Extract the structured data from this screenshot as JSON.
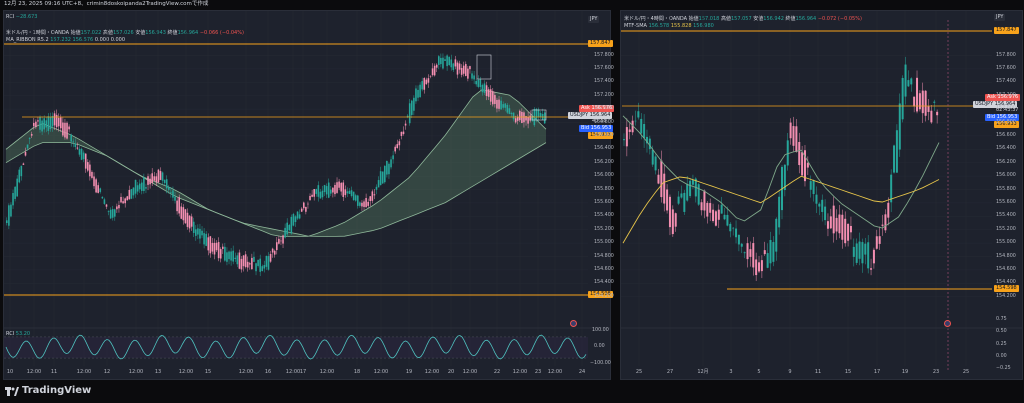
{
  "topbar": {
    "text": "12月 23, 2025 09:16 UTC+8、crimin8doskoipanda2TradingView.comで作成"
  },
  "left": {
    "rci_label": "RCI",
    "rci_value": "−28.673",
    "symbol_line": "米ドル/円・1時間・OANDA",
    "ohlc": {
      "o_label": "始値",
      "o": "157.022",
      "h_label": "高値",
      "h": "157.026",
      "l_label": "安値",
      "l": "156.943",
      "c_label": "終値",
      "c": "156.964",
      "chg": "−0.066 (−0.04%)"
    },
    "ribbon_label": "MA_RIBBON R5.2",
    "ribbon_vals": [
      "157.232",
      "156.576",
      "0.000",
      "0.000"
    ],
    "currency": "JPY",
    "price_axis": [
      "157.800",
      "157.600",
      "157.400",
      "157.200",
      "157.000",
      "156.800",
      "156.600",
      "156.400",
      "156.200",
      "156.000",
      "155.800",
      "155.600",
      "155.400",
      "155.200",
      "155.000",
      "154.800",
      "154.600",
      "154.400",
      "154.200"
    ],
    "top_line_label": "157.847",
    "bottom_line_label": "154.598",
    "ask": {
      "tag": "Ask",
      "value": "156.976"
    },
    "last": {
      "symbol": "USDJPY",
      "value": "156.964",
      "timer": "43:38"
    },
    "bid": {
      "tag": "Bid",
      "value": "156.953"
    },
    "orange_tag": "156.933",
    "rci_axis": [
      "100.00",
      "0.00",
      "−100.00"
    ],
    "x_axis": [
      "10",
      "12:00",
      "11",
      "12:00",
      "12",
      "12:00",
      "13",
      "12:00",
      "15",
      "12:00",
      "16",
      "12:00",
      "17",
      "12:00",
      "18",
      "12:00",
      "19",
      "12:00",
      "20",
      "12:00",
      "22",
      "12:00",
      "23",
      "12:00",
      "24"
    ],
    "rci_sub_label": "RCI",
    "rci_sub_vals": "−28.673",
    "rci_panel_label_extra": "53.20"
  },
  "right": {
    "symbol_line": "米ドル/円・4時間・OANDA",
    "ohlc": {
      "o_label": "始値",
      "o": "157.018",
      "h_label": "高値",
      "h": "157.057",
      "l_label": "安値",
      "l": "156.942",
      "c_label": "終値",
      "c": "156.964",
      "chg": "−0.072 (−0.05%)"
    },
    "mtf_label": "MTF-SMA",
    "mtf_vals": [
      "156.578",
      "155.828",
      "156.980"
    ],
    "currency": "JPY",
    "price_axis": [
      "157.800",
      "157.600",
      "157.400",
      "157.200",
      "157.000",
      "156.800",
      "156.600",
      "156.400",
      "156.200",
      "156.000",
      "155.800",
      "155.600",
      "155.400",
      "155.200",
      "155.000",
      "154.800",
      "154.600",
      "154.400",
      "154.200"
    ],
    "top_line_label": "157.847",
    "bottom_line_label": "154.598",
    "ask": {
      "tag": "Ask",
      "value": "156.976"
    },
    "last": {
      "symbol": "USDJPY",
      "value": "156.964",
      "timer": "02:43:37"
    },
    "bid": {
      "tag": "Bid",
      "value": "156.953"
    },
    "orange_tag": "156.933",
    "rci_axis": [
      "0.75",
      "0.50",
      "0.25",
      "0.00",
      "−0.25"
    ],
    "x_axis": [
      "25",
      "27",
      "12月",
      "3",
      "5",
      "9",
      "11",
      "15",
      "17",
      "19",
      "23",
      "25"
    ]
  },
  "brand": {
    "name": "TradingView"
  },
  "colors": {
    "up": "#26a69a",
    "down": "#ef5350",
    "orange": "#f7a21b",
    "ribbon": "#7fa88a",
    "blue": "#2962ff",
    "rci": "#4fc3c0"
  }
}
